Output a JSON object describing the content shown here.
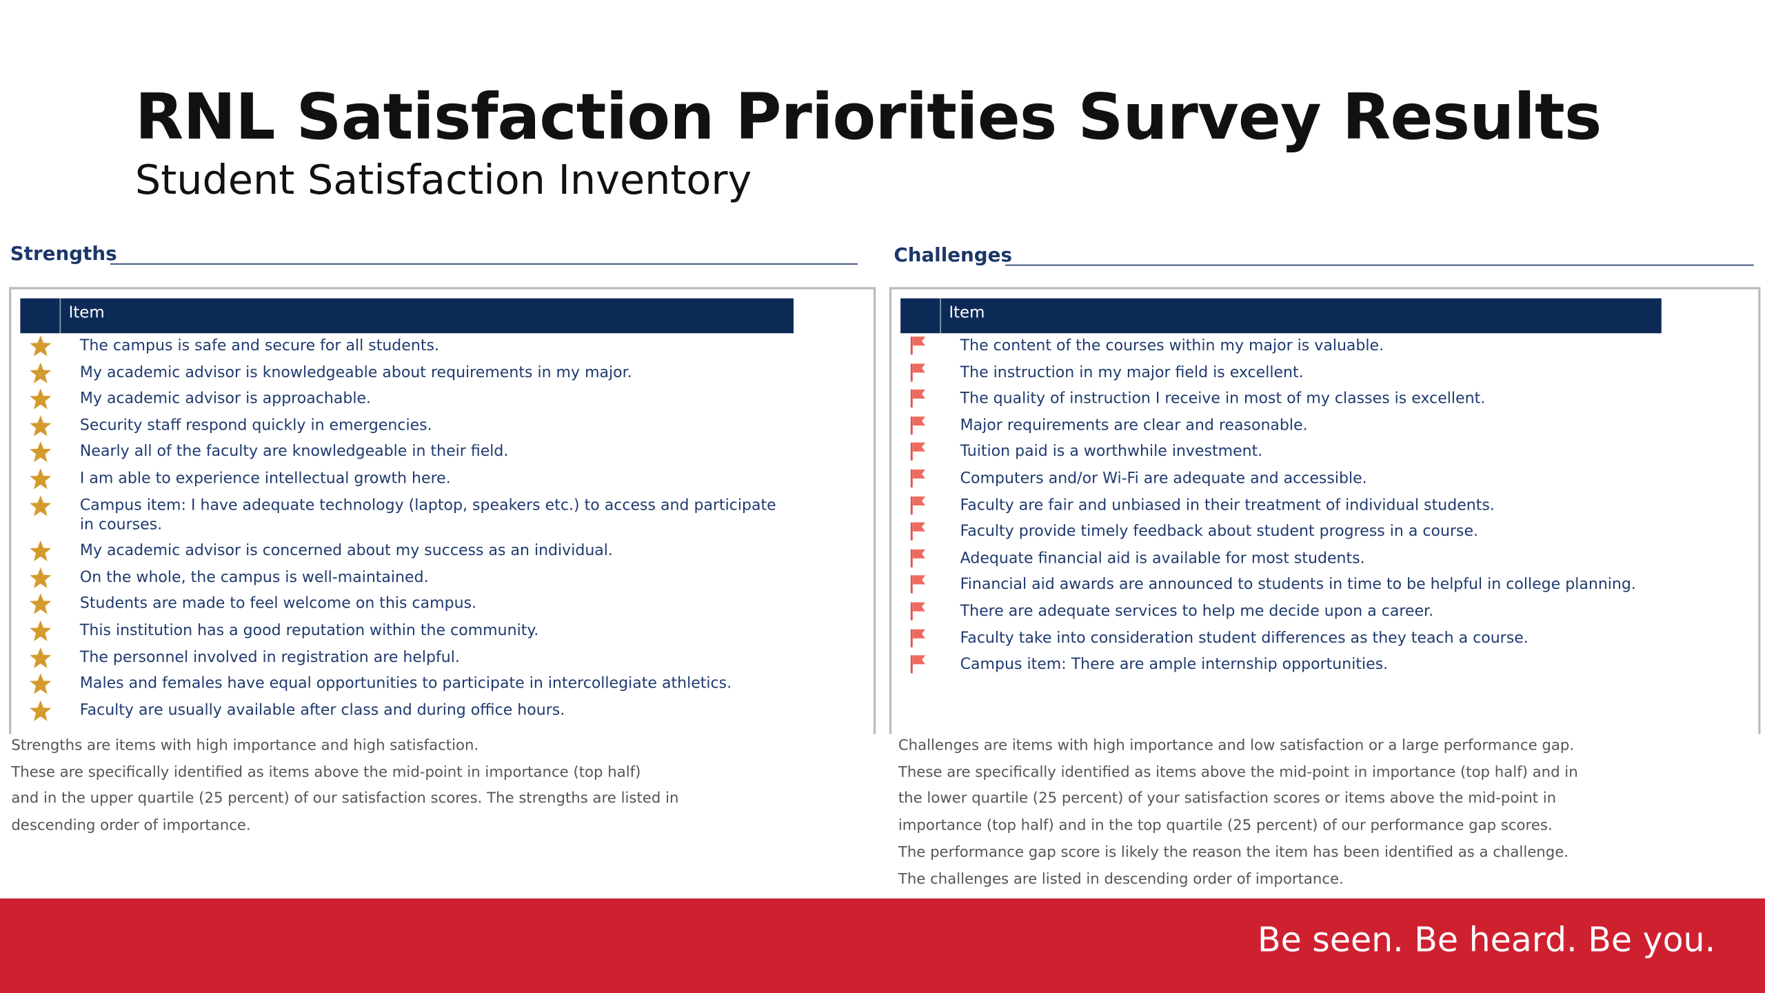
{
  "header": {
    "title": "RNL Satisfaction Priorities Survey Results",
    "subtitle": "Student Satisfaction Inventory"
  },
  "strengths": {
    "heading": "Strengths",
    "column": "Item",
    "items": [
      "The campus is safe and secure for all students.",
      "My academic advisor is knowledgeable about requirements in my major.",
      "My academic advisor is approachable.",
      "Security staff respond quickly in emergencies.",
      "Nearly all of the faculty are knowledgeable in their field.",
      "I am able to experience intellectual growth here.",
      "Campus item: I have adequate technology (laptop, speakers etc.) to access and participate in courses.",
      "My academic advisor is concerned about my success as an individual.",
      "On the whole, the campus is well-maintained.",
      "Students are made to feel welcome on this campus.",
      "This institution has a good reputation within the community.",
      "The personnel involved in registration are helpful.",
      "Males and females have equal opportunities to participate in intercollegiate athletics.",
      "Faculty are usually available after class and during office hours."
    ],
    "notes": [
      "Strengths are items with high importance and high satisfaction.",
      "These are specifically identified as items above the mid-point in importance (top half)",
      "and in the upper quartile (25 percent) of our satisfaction scores. The strengths are listed in",
      "descending order of importance."
    ]
  },
  "challenges": {
    "heading": "Challenges",
    "column": "Item",
    "items": [
      "The content of the courses within my major is valuable.",
      "The instruction in my major field is excellent.",
      "The quality of instruction I receive in most of my classes is excellent.",
      "Major requirements are clear and reasonable.",
      "Tuition paid is a worthwhile investment.",
      "Computers and/or Wi-Fi are adequate and accessible.",
      "Faculty are fair and unbiased in their treatment of individual students.",
      "Faculty provide timely feedback about student progress in a course.",
      "Adequate financial aid is available for most students.",
      "Financial aid awards are announced to students in time to be helpful in college planning.",
      "There are adequate services to help me decide upon a career.",
      "Faculty take into consideration student differences as they teach a course.",
      "Campus item: There are ample internship opportunities."
    ],
    "notes": [
      "Challenges are items with high importance and low satisfaction or a large performance gap.",
      "These are specifically identified as items above the mid-point in importance (top half) and in",
      "the lower quartile (25 percent) of your satisfaction scores or items above the mid-point in",
      "importance (top half) and in the top quartile (25 percent) of our performance gap scores.",
      "The performance gap score is likely the reason the item has been identified as a challenge.",
      "The challenges are listed in descending order of importance."
    ]
  },
  "footer": {
    "tagline": "Be seen. Be heard. Be you."
  }
}
